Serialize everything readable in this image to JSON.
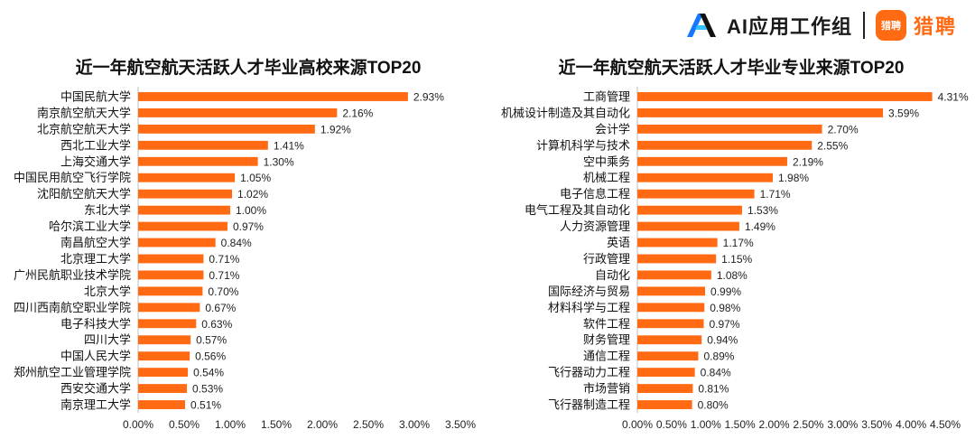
{
  "brand": {
    "ai_text": "AI应用工作组",
    "liepin_badge": "猎聘",
    "liepin_text": "猎聘"
  },
  "chart_data": [
    {
      "type": "bar",
      "orientation": "horizontal",
      "title": "近一年航空航天活跃人才毕业高校来源TOP20",
      "categories": [
        "中国民航大学",
        "南京航空航天大学",
        "北京航空航天大学",
        "西北工业大学",
        "上海交通大学",
        "中国民用航空飞行学院",
        "沈阳航空航天大学",
        "东北大学",
        "哈尔滨工业大学",
        "南昌航空大学",
        "北京理工大学",
        "广州民航职业技术学院",
        "北京大学",
        "四川西南航空职业学院",
        "电子科技大学",
        "四川大学",
        "中国人民大学",
        "郑州航空工业管理学院",
        "西安交通大学",
        "南京理工大学"
      ],
      "values": [
        2.93,
        2.16,
        1.92,
        1.41,
        1.3,
        1.05,
        1.02,
        1.0,
        0.97,
        0.84,
        0.71,
        0.71,
        0.7,
        0.67,
        0.63,
        0.57,
        0.56,
        0.54,
        0.53,
        0.51
      ],
      "value_labels": [
        "2.93%",
        "2.16%",
        "1.92%",
        "1.41%",
        "1.30%",
        "1.05%",
        "1.02%",
        "1.00%",
        "0.97%",
        "0.84%",
        "0.71%",
        "0.71%",
        "0.70%",
        "0.67%",
        "0.63%",
        "0.57%",
        "0.56%",
        "0.54%",
        "0.53%",
        "0.51%"
      ],
      "xlim": [
        0,
        3.5
      ],
      "x_ticks": [
        "0.00%",
        "0.50%",
        "1.00%",
        "1.50%",
        "2.00%",
        "2.50%",
        "3.00%",
        "3.50%"
      ],
      "bar_color": "#ff6a13",
      "grid": false
    },
    {
      "type": "bar",
      "orientation": "horizontal",
      "title": "近一年航空航天活跃人才毕业专业来源TOP20",
      "categories": [
        "工商管理",
        "机械设计制造及其自动化",
        "会计学",
        "计算机科学与技术",
        "空中乘务",
        "机械工程",
        "电子信息工程",
        "电气工程及其自动化",
        "人力资源管理",
        "英语",
        "行政管理",
        "自动化",
        "国际经济与贸易",
        "材料科学与工程",
        "软件工程",
        "财务管理",
        "通信工程",
        "飞行器动力工程",
        "市场营销",
        "飞行器制造工程"
      ],
      "values": [
        4.31,
        3.59,
        2.7,
        2.55,
        2.19,
        1.98,
        1.71,
        1.53,
        1.49,
        1.17,
        1.15,
        1.08,
        0.99,
        0.98,
        0.97,
        0.94,
        0.89,
        0.84,
        0.81,
        0.8
      ],
      "value_labels": [
        "4.31%",
        "3.59%",
        "2.70%",
        "2.55%",
        "2.19%",
        "1.98%",
        "1.71%",
        "1.53%",
        "1.49%",
        "1.17%",
        "1.15%",
        "1.08%",
        "0.99%",
        "0.98%",
        "0.97%",
        "0.94%",
        "0.89%",
        "0.84%",
        "0.81%",
        "0.80%"
      ],
      "xlim": [
        0,
        4.5
      ],
      "x_ticks": [
        "0.00%",
        "0.50%",
        "1.00%",
        "1.50%",
        "2.00%",
        "2.50%",
        "3.00%",
        "3.50%",
        "4.00%",
        "4.50%"
      ],
      "bar_color": "#ff6a13",
      "grid": false
    }
  ]
}
